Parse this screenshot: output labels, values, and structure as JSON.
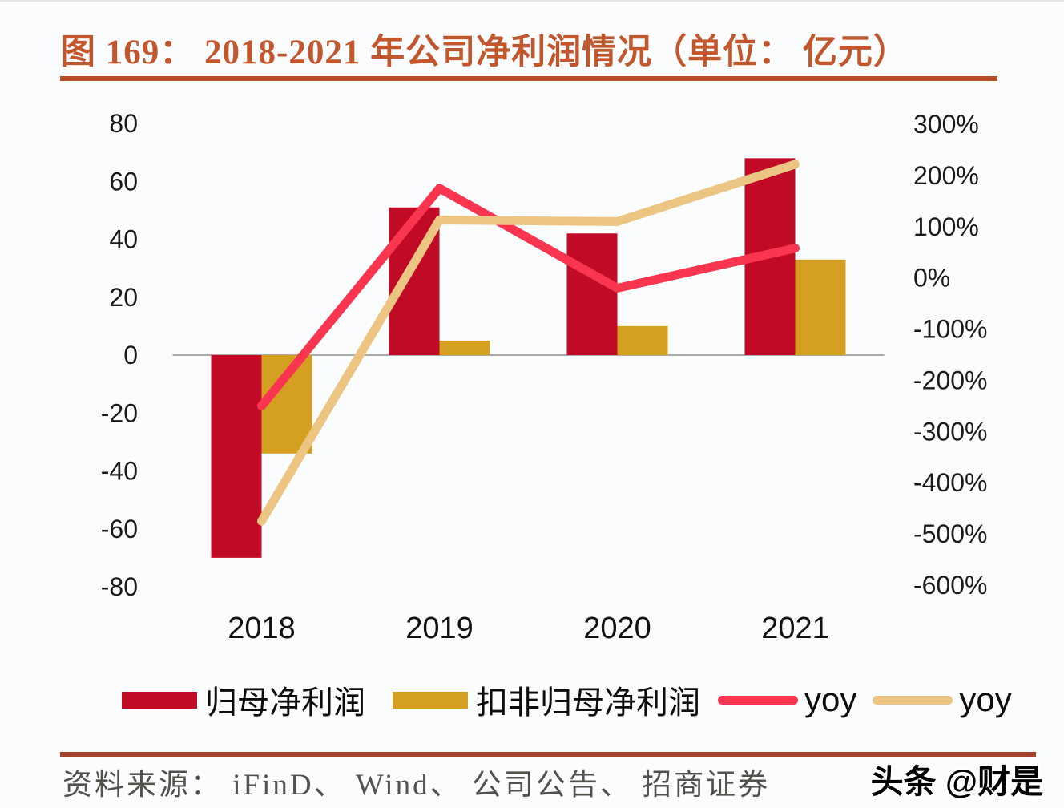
{
  "page": {
    "background": "#FBFCFD"
  },
  "header": {
    "title": "图 169：  2018-2021 年公司净利润情况（单位：  亿元）",
    "accent_color": "#C2572E"
  },
  "chart_data": {
    "type": "combo",
    "categories": [
      "2018",
      "2019",
      "2020",
      "2021"
    ],
    "series": [
      {
        "name": "归母净利润",
        "type": "bar",
        "axis": "left",
        "color": "#C00A26",
        "values": [
          -70,
          51,
          42,
          68
        ]
      },
      {
        "name": "扣非归母净利润",
        "type": "bar",
        "axis": "left",
        "color": "#D5A021",
        "values": [
          -34,
          5,
          10,
          33
        ]
      },
      {
        "name": "yoy",
        "type": "line",
        "axis": "right",
        "color": "#F9354F",
        "values": [
          -250,
          175,
          -20,
          58
        ]
      },
      {
        "name": "yoy",
        "type": "line",
        "axis": "right",
        "color": "#EDC582",
        "values": [
          -475,
          113,
          110,
          222
        ]
      }
    ],
    "left_axis": {
      "min": -80,
      "max": 80,
      "step": 20,
      "tick_labels": [
        "80",
        "60",
        "40",
        "20",
        "0",
        "-20",
        "-40",
        "-60",
        "-80"
      ]
    },
    "right_axis": {
      "min": -600,
      "max": 300,
      "step": 100,
      "tick_labels": [
        "300%",
        "200%",
        "100%",
        "0%",
        "-100%",
        "-200%",
        "-300%",
        "-400%",
        "-500%",
        "-600%"
      ]
    },
    "grid": false,
    "legend_position": "bottom",
    "axis_line_color": "#ABABAB",
    "tick_color": "#1A1A1A"
  },
  "legend": {
    "items": [
      {
        "label": "归母净利润",
        "swatch": "bar",
        "color": "#C00A26"
      },
      {
        "label": "扣非归母净利润",
        "swatch": "bar",
        "color": "#D5A021"
      },
      {
        "label": "yoy",
        "swatch": "line",
        "color": "#F9354F"
      },
      {
        "label": "yoy",
        "swatch": "line",
        "color": "#EDC582"
      }
    ]
  },
  "footer": {
    "source": "资料来源：  iFinD、 Wind、 公司公告、 招商证券",
    "watermark": "头条 @财是"
  }
}
